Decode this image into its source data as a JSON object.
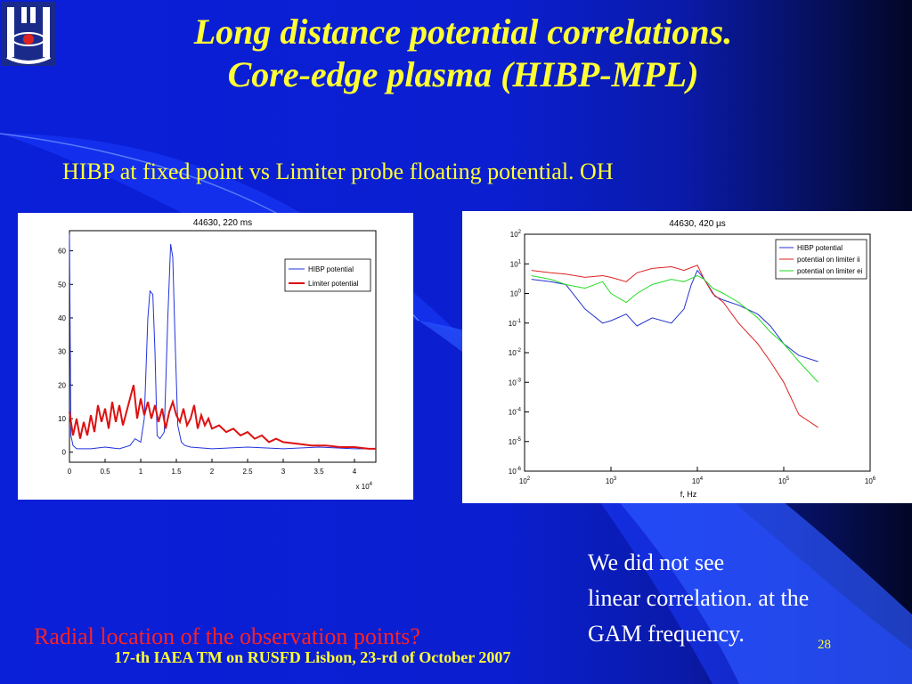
{
  "slide": {
    "title_line1": "Long distance potential correlations.",
    "title_line2": "Core-edge plasma (HIBP-MPL)",
    "subtitle": "HIBP at fixed point vs Limiter probe floating potential. OH",
    "note_lines": [
      "We did not see",
      "linear correlation. at the",
      "GAM frequency."
    ],
    "question": "Radial location of the observation points?",
    "footer": "17-th IAEA TM on RUSFD Lisbon, 23-rd of October 2007",
    "page_number": "28",
    "colors": {
      "title": "#ffff33",
      "question": "#ff2222",
      "note": "#ffffff",
      "background": "#0a1fd8"
    }
  },
  "chart_data": [
    {
      "type": "line",
      "title": "44630, 220 ms",
      "xlabel": "",
      "x_multiplier_label": "x 10^4",
      "ylabel": "",
      "xlim": [
        0,
        4.3
      ],
      "ylim": [
        -3,
        66
      ],
      "x_ticks": [
        0,
        0.5,
        1,
        1.5,
        2,
        2.5,
        3,
        3.5,
        4
      ],
      "x_tick_labels": [
        "0",
        "0.5",
        "1",
        "1.5",
        "2",
        "2.5",
        "3",
        "3.5",
        "4"
      ],
      "y_ticks": [
        0,
        10,
        20,
        30,
        40,
        50,
        60
      ],
      "y_tick_labels": [
        "0",
        "10",
        "20",
        "30",
        "40",
        "50",
        "60"
      ],
      "legend_position": "top-right",
      "series": [
        {
          "name": "HIBP potential",
          "color": "#2233dd",
          "x": [
            0,
            0.02,
            0.05,
            0.1,
            0.3,
            0.5,
            0.7,
            0.85,
            0.92,
            1.0,
            1.05,
            1.1,
            1.13,
            1.17,
            1.2,
            1.23,
            1.27,
            1.33,
            1.38,
            1.42,
            1.45,
            1.48,
            1.52,
            1.57,
            1.62,
            1.7,
            2.0,
            2.5,
            3.0,
            3.5,
            4.0,
            4.3
          ],
          "y": [
            65,
            5,
            2,
            1,
            1,
            1.5,
            1,
            2,
            4,
            3,
            10,
            40,
            48,
            47,
            30,
            5,
            4,
            6,
            40,
            62,
            58,
            35,
            8,
            3,
            2,
            1.5,
            1,
            1.5,
            1,
            1.5,
            1,
            1
          ]
        },
        {
          "name": "Limiter potential",
          "color": "#dd1111",
          "x": [
            0,
            0.05,
            0.1,
            0.15,
            0.2,
            0.25,
            0.3,
            0.35,
            0.4,
            0.45,
            0.5,
            0.55,
            0.6,
            0.65,
            0.7,
            0.75,
            0.8,
            0.85,
            0.9,
            0.95,
            1.0,
            1.05,
            1.1,
            1.15,
            1.2,
            1.25,
            1.3,
            1.35,
            1.4,
            1.45,
            1.5,
            1.55,
            1.6,
            1.65,
            1.7,
            1.75,
            1.8,
            1.85,
            1.9,
            1.95,
            2.0,
            2.1,
            2.2,
            2.3,
            2.4,
            2.5,
            2.6,
            2.7,
            2.8,
            2.9,
            3.0,
            3.2,
            3.4,
            3.6,
            3.8,
            4.0,
            4.2,
            4.3
          ],
          "y": [
            12,
            5,
            10,
            4,
            9,
            5,
            11,
            6,
            14,
            9,
            13,
            7,
            15,
            9,
            14,
            8,
            12,
            16,
            20,
            10,
            16,
            11,
            15,
            10,
            14,
            9,
            13,
            7,
            12,
            15,
            11,
            9,
            13,
            8,
            10,
            14,
            7,
            11,
            8,
            10,
            7,
            8,
            6,
            7,
            5,
            6,
            4,
            5,
            3,
            4,
            3,
            2.5,
            2,
            2,
            1.5,
            1.5,
            1,
            1
          ]
        }
      ]
    },
    {
      "type": "line",
      "title": "44630, 420 µs",
      "xlabel": "f, Hz",
      "ylabel": "",
      "x_scale": "log",
      "y_scale": "log",
      "xlim": [
        100,
        1000000
      ],
      "ylim": [
        1e-06,
        100
      ],
      "x_tick_labels": [
        "10^2",
        "10^3",
        "10^4",
        "10^5",
        "10^6"
      ],
      "y_tick_labels": [
        "10^2",
        "10^1",
        "10^0",
        "10^-1",
        "10^-2",
        "10^-3",
        "10^-4",
        "10^-5",
        "10^-6"
      ],
      "legend_position": "top-right",
      "series": [
        {
          "name": "HIBP potential",
          "color": "#2233cc",
          "x": [
            120,
            200,
            300,
            500,
            800,
            1000,
            1500,
            2000,
            3000,
            5000,
            7000,
            8500,
            10000,
            12000,
            14000,
            16000,
            20000,
            30000,
            50000,
            70000,
            100000,
            150000,
            250000
          ],
          "y": [
            3,
            2.5,
            2,
            0.3,
            0.1,
            0.12,
            0.2,
            0.08,
            0.15,
            0.1,
            0.3,
            2,
            6,
            3,
            1.5,
            0.8,
            0.6,
            0.4,
            0.2,
            0.08,
            0.02,
            0.008,
            0.005
          ]
        },
        {
          "name": "potential on limiter ii",
          "color": "#dd2222",
          "x": [
            120,
            200,
            300,
            500,
            800,
            1000,
            1500,
            2000,
            3000,
            5000,
            7000,
            10000,
            12000,
            15000,
            20000,
            30000,
            50000,
            70000,
            100000,
            150000,
            250000
          ],
          "y": [
            6,
            5,
            4.5,
            3.5,
            4,
            3.5,
            2.5,
            5,
            7,
            8,
            6,
            9,
            3,
            1,
            0.5,
            0.1,
            0.02,
            0.005,
            0.001,
            8e-05,
            3e-05
          ]
        },
        {
          "name": "potential on limiter ei",
          "color": "#22dd22",
          "x": [
            120,
            200,
            300,
            500,
            800,
            1000,
            1500,
            2000,
            3000,
            5000,
            7000,
            10000,
            12000,
            15000,
            20000,
            30000,
            50000,
            70000,
            100000,
            150000,
            250000
          ],
          "y": [
            4,
            3,
            2,
            1.5,
            2.5,
            1,
            0.5,
            1,
            2,
            3,
            2.5,
            4,
            3,
            1.5,
            1,
            0.5,
            0.15,
            0.05,
            0.02,
            0.005,
            0.001
          ]
        }
      ]
    }
  ]
}
